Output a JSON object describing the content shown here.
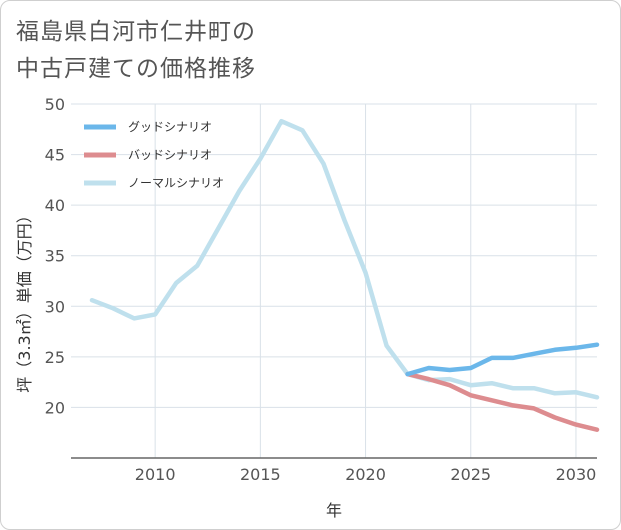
{
  "chart_data": {
    "type": "line",
    "title_lines": [
      "福島県白河市仁井町の",
      "中古戸建ての価格推移"
    ],
    "xlabel": "年",
    "ylabel": "坪（3.3㎡）単価（万円）",
    "xlim": [
      2006,
      2031
    ],
    "ylim": [
      15,
      50
    ],
    "x_ticks": [
      2010,
      2015,
      2020,
      2025,
      2030
    ],
    "y_ticks": [
      20,
      25,
      30,
      35,
      40,
      45,
      50
    ],
    "legend_position": "top-left",
    "series": [
      {
        "name": "グッドシナリオ",
        "color": "#6bb7ea",
        "x": [
          2022,
          2023,
          2024,
          2025,
          2026,
          2027,
          2028,
          2029,
          2030,
          2031
        ],
        "y": [
          23.3,
          23.9,
          23.7,
          23.9,
          24.9,
          24.9,
          25.3,
          25.7,
          25.9,
          26.2
        ]
      },
      {
        "name": "バッドシナリオ",
        "color": "#dd8c8f",
        "x": [
          2022,
          2023,
          2024,
          2025,
          2026,
          2027,
          2028,
          2029,
          2030,
          2031
        ],
        "y": [
          23.3,
          22.8,
          22.2,
          21.2,
          20.7,
          20.2,
          19.9,
          19.0,
          18.3,
          17.8
        ]
      },
      {
        "name": "ノーマルシナリオ",
        "color": "#bfe0ed",
        "x": [
          2007,
          2008,
          2009,
          2010,
          2011,
          2012,
          2013,
          2014,
          2015,
          2016,
          2017,
          2018,
          2019,
          2020,
          2021,
          2022,
          2023,
          2024,
          2025,
          2026,
          2027,
          2028,
          2029,
          2030,
          2031
        ],
        "y": [
          30.6,
          29.8,
          28.8,
          29.2,
          32.3,
          34.0,
          37.7,
          41.4,
          44.6,
          48.3,
          47.4,
          44.1,
          38.5,
          33.3,
          26.1,
          23.3,
          22.7,
          22.8,
          22.2,
          22.4,
          21.9,
          21.9,
          21.4,
          21.5,
          21.0
        ]
      }
    ]
  }
}
